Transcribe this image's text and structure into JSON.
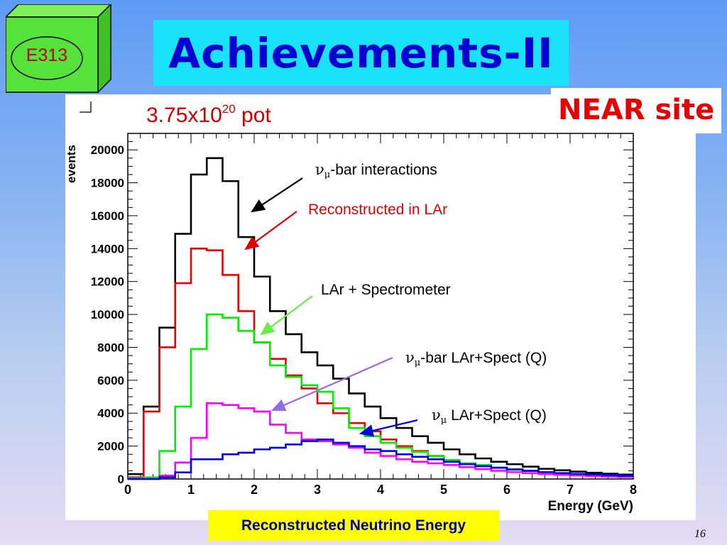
{
  "slide": {
    "title": "Achievements-II",
    "logo_label": "E313",
    "site_label": "NEAR site",
    "pot_base": "3.75x10",
    "pot_exponent": "20",
    "pot_unit": "pot",
    "xaxis_caption": "Reconstructed Neutrino Energy",
    "page_number": "16",
    "colors": {
      "title_bg": "#1ae2fb",
      "title_text": "#0000d0",
      "near_text": "#e60000",
      "caption_bg": "#ffff00",
      "cube_green": "#55e23a"
    }
  },
  "annotations": [
    {
      "greek": "ν",
      "sub": "μ",
      "text": "-bar interactions",
      "color": "#000000",
      "arrow_color": "#000000"
    },
    {
      "greek": "",
      "sub": "",
      "text": "Reconstructed in LAr",
      "color": "#e00000",
      "arrow_color": "#e00000"
    },
    {
      "greek": "",
      "sub": "",
      "text": "LAr + Spectrometer",
      "color": "#000000",
      "arrow_color": "#66ee44"
    },
    {
      "greek": "ν",
      "sub": "μ",
      "text": "-bar LAr+Spect (Q)",
      "color": "#000000",
      "arrow_color": "#9966ee"
    },
    {
      "greek": "ν",
      "sub": "μ",
      "text": " LAr+Spect (Q)",
      "color": "#000000",
      "arrow_color": "#0000dd"
    }
  ],
  "chart_data": {
    "type": "histogram",
    "xlabel": "Energy (GeV)",
    "ylabel": "events",
    "xlim": [
      0,
      8
    ],
    "ylim": [
      0,
      21000
    ],
    "xticks": [
      "0",
      "1",
      "2",
      "3",
      "4",
      "5",
      "6",
      "7",
      "8"
    ],
    "yticks": [
      "0",
      "2000",
      "4000",
      "6000",
      "8000",
      "10000",
      "12000",
      "14000",
      "16000",
      "18000",
      "20000"
    ],
    "bin_edges": [
      0,
      0.25,
      0.5,
      0.75,
      1.0,
      1.25,
      1.5,
      1.75,
      2.0,
      2.25,
      2.5,
      2.75,
      3.0,
      3.25,
      3.5,
      3.75,
      4.0,
      4.25,
      4.5,
      4.75,
      5.0,
      5.25,
      5.5,
      5.75,
      6.0,
      6.25,
      6.5,
      6.75,
      7.0,
      7.25,
      7.5,
      7.75,
      8.0
    ],
    "series": [
      {
        "color": "#000000",
        "values": [
          300,
          4400,
          9200,
          14900,
          18500,
          19500,
          18100,
          14700,
          12300,
          10200,
          8800,
          7700,
          6900,
          6100,
          5200,
          4400,
          3700,
          3100,
          2600,
          2200,
          1800,
          1500,
          1250,
          1050,
          900,
          750,
          620,
          530,
          450,
          380,
          320,
          270
        ]
      },
      {
        "color": "#ee0000",
        "values": [
          100,
          4100,
          8000,
          11900,
          14000,
          13900,
          12400,
          10200,
          8300,
          7300,
          6300,
          5500,
          4600,
          4000,
          3400,
          2900,
          2400,
          2000,
          1700,
          1400,
          1150,
          950,
          800,
          680,
          580,
          480,
          400,
          340,
          290,
          250,
          210,
          180
        ]
      },
      {
        "color": "#00ee00",
        "values": [
          50,
          100,
          1700,
          4400,
          7900,
          10000,
          9800,
          9000,
          8300,
          6900,
          6200,
          5700,
          5300,
          4300,
          3100,
          2600,
          2200,
          1900,
          1650,
          1400,
          1150,
          950,
          850,
          700,
          600,
          500,
          420,
          360,
          310,
          270,
          230,
          200
        ]
      },
      {
        "color": "#ff00ff",
        "values": [
          0,
          0,
          200,
          1000,
          2500,
          4600,
          4500,
          4300,
          4100,
          3300,
          2800,
          2400,
          2300,
          2100,
          1900,
          1600,
          1400,
          1200,
          1050,
          950,
          850,
          720,
          600,
          500,
          420,
          350,
          300,
          250,
          210,
          180,
          150,
          120
        ]
      },
      {
        "color": "#0000ee",
        "values": [
          0,
          0,
          100,
          400,
          1200,
          1200,
          1500,
          1600,
          1800,
          1900,
          2100,
          2300,
          2400,
          2200,
          2000,
          1800,
          1700,
          1500,
          1350,
          1200,
          1050,
          900,
          780,
          680,
          580,
          500,
          420,
          360,
          310,
          270,
          230,
          200
        ]
      }
    ]
  }
}
